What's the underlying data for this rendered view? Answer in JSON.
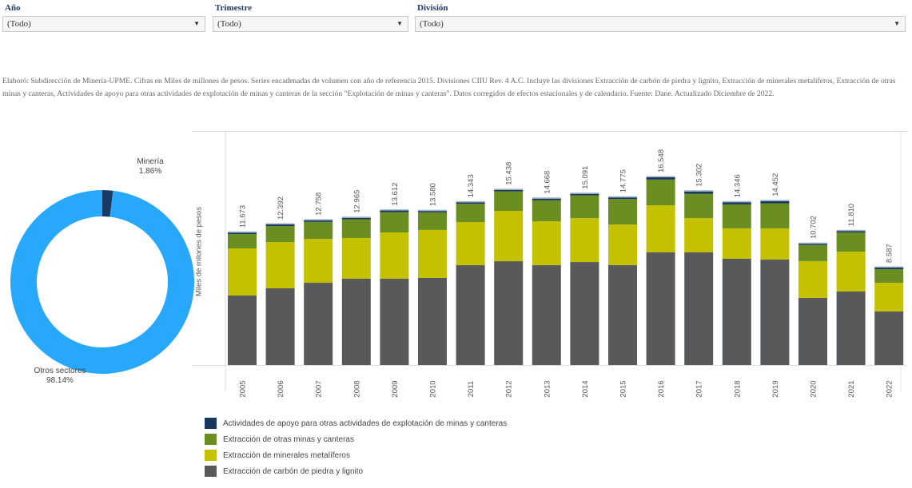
{
  "filters": [
    {
      "label": "Año",
      "value": "(Todo)"
    },
    {
      "label": "Trimestre",
      "value": "(Todo)"
    },
    {
      "label": "División",
      "value": "(Todo)"
    }
  ],
  "note": "Elaboró: Subdirección de Minería-UPME. Cifras en Miles de millones de pesos. Series encadenadas de volumen con año de referencia 2015. Divisiones CIIU Rev. 4 A.C. Incluye las divisiones Extracción de carbón de piedra y lignito, Extracción de minerales metalíferos, Extracción de otras minas y canteras, Actividades de apoyo para otras actividades de explotación de minas y canteras de la sección \"Explotación de minas y canteras\". Datos corregidos de efectos estacionales y de calendario. Fuente: Dane. Actualizado Diciembre de 2022.",
  "chart_data": [
    {
      "type": "pie",
      "subtype": "donut",
      "title": "",
      "slices": [
        {
          "label": "Minería",
          "value": 1.86,
          "display": "1.86%",
          "color": "#1a3a66"
        },
        {
          "label": "Otros sectores",
          "value": 98.14,
          "display": "98.14%",
          "color": "#27a8fa"
        }
      ]
    },
    {
      "type": "bar",
      "stacked": true,
      "title": "",
      "xlabel": "",
      "ylabel": "Miles de milones de pesos",
      "ylim": [
        0,
        17.5
      ],
      "grid": false,
      "legend_position": "bottom-left",
      "categories": [
        "2005",
        "2006",
        "2007",
        "2008",
        "2009",
        "2010",
        "2011",
        "2012",
        "2013",
        "2014",
        "2015",
        "2016",
        "2017",
        "2018",
        "2019",
        "2020",
        "2021",
        "2022"
      ],
      "totals": [
        11.673,
        12.392,
        12.758,
        12.965,
        13.612,
        13.58,
        14.343,
        15.438,
        14.668,
        15.091,
        14.775,
        16.548,
        15.302,
        14.346,
        14.452,
        10.702,
        11.81,
        8.587
      ],
      "total_labels": [
        "11.673",
        "12.392",
        "12.758",
        "12.965",
        "13.612",
        "13.580",
        "14.343",
        "15.438",
        "14.668",
        "15.091",
        "14.775",
        "16.548",
        "15.302",
        "14.346",
        "14.452",
        "10.702",
        "11.810",
        "8.587"
      ],
      "series": [
        {
          "name": "Extracción de carbón de piedra y lignito",
          "color": "#58595b",
          "values": [
            6.13,
            6.76,
            7.25,
            7.61,
            7.61,
            7.68,
            8.8,
            9.15,
            8.8,
            9.08,
            8.8,
            9.93,
            9.93,
            9.37,
            9.3,
            5.92,
            6.48,
            4.72
          ]
        },
        {
          "name": "Extracción de minerales metalíferos",
          "color": "#c4c100",
          "values": [
            4.15,
            4.08,
            3.87,
            3.59,
            4.08,
            4.23,
            3.8,
            4.44,
            3.87,
            3.87,
            3.59,
            4.15,
            3.03,
            2.68,
            2.75,
            3.24,
            3.52,
            2.53
          ]
        },
        {
          "name": "Extracción de otras minas y canteras",
          "color": "#6b8e23",
          "values": [
            1.27,
            1.41,
            1.5,
            1.65,
            1.78,
            1.55,
            1.62,
            1.72,
            1.85,
            2.01,
            2.24,
            2.27,
            2.14,
            2.11,
            2.21,
            1.42,
            1.69,
            1.2
          ]
        },
        {
          "name": "Actividades de apoyo para otras actividades de explotación de minas y canteras",
          "color": "#17375e",
          "values": [
            0.123,
            0.142,
            0.138,
            0.125,
            0.152,
            0.12,
            0.123,
            0.128,
            0.148,
            0.131,
            0.145,
            0.198,
            0.202,
            0.186,
            0.192,
            0.112,
            0.12,
            0.137
          ]
        }
      ]
    }
  ],
  "legend": [
    {
      "label": "Actividades de apoyo para otras actividades de explotación de minas y canteras",
      "color": "#17375e"
    },
    {
      "label": "Extracción de otras minas y canteras",
      "color": "#6b8e23"
    },
    {
      "label": "Extracción de minerales metalíferos",
      "color": "#c4c100"
    },
    {
      "label": "Extracción de carbón de piedra y lignito",
      "color": "#58595b"
    }
  ]
}
